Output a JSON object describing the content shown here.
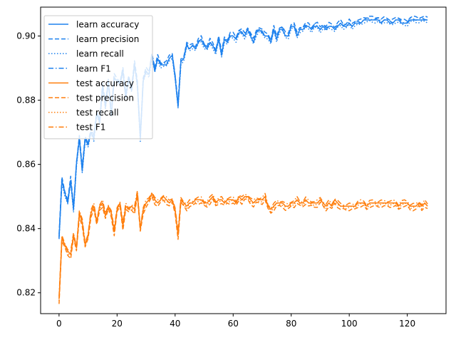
{
  "chart_data": {
    "type": "line",
    "title": "",
    "xlabel": "",
    "ylabel": "",
    "xlim": [
      -6.35,
      133.35
    ],
    "ylim": [
      0.8135,
      0.909
    ],
    "xticks": [
      0,
      20,
      40,
      60,
      80,
      100,
      120
    ],
    "yticks": [
      0.82,
      0.84,
      0.86,
      0.88,
      0.9
    ],
    "ytick_labels": [
      "0.82",
      "0.84",
      "0.86",
      "0.88",
      "0.90"
    ],
    "grid": false,
    "legend_position": "upper left",
    "colors": {
      "learn": "#1f82ee",
      "test": "#ff7f0e"
    },
    "series": [
      {
        "name": "learn accuracy",
        "group": "learn",
        "style": "solid"
      },
      {
        "name": "learn precision",
        "group": "learn",
        "style": "dashed"
      },
      {
        "name": "learn recall",
        "group": "learn",
        "style": "dotted"
      },
      {
        "name": "learn F1",
        "group": "learn",
        "style": "dashdot"
      },
      {
        "name": "test accuracy",
        "group": "test",
        "style": "solid"
      },
      {
        "name": "test precision",
        "group": "test",
        "style": "dashed"
      },
      {
        "name": "test recall",
        "group": "test",
        "style": "dotted"
      },
      {
        "name": "test F1",
        "group": "test",
        "style": "dashdot"
      }
    ],
    "series_values": {
      "x": [
        0,
        1,
        2,
        3,
        4,
        5,
        6,
        7,
        8,
        9,
        10,
        11,
        12,
        13,
        14,
        15,
        16,
        17,
        18,
        19,
        20,
        21,
        22,
        23,
        24,
        25,
        26,
        27,
        28,
        29,
        30,
        31,
        32,
        33,
        34,
        35,
        36,
        37,
        38,
        39,
        40,
        41,
        42,
        43,
        44,
        45,
        46,
        47,
        48,
        49,
        50,
        51,
        52,
        53,
        54,
        55,
        56,
        57,
        58,
        59,
        60,
        61,
        62,
        63,
        64,
        65,
        66,
        67,
        68,
        69,
        70,
        71,
        72,
        73,
        74,
        75,
        76,
        77,
        78,
        79,
        80,
        81,
        82,
        83,
        84,
        85,
        86,
        87,
        88,
        89,
        90,
        91,
        92,
        93,
        94,
        95,
        96,
        97,
        98,
        99,
        100,
        101,
        102,
        103,
        104,
        105,
        106,
        107,
        108,
        109,
        110,
        111,
        112,
        113,
        114,
        115,
        116,
        117,
        118,
        119,
        120,
        121,
        122,
        123,
        124,
        125,
        126,
        127
      ],
      "learn": [
        0.837,
        0.855,
        0.851,
        0.848,
        0.855,
        0.846,
        0.86,
        0.868,
        0.858,
        0.868,
        0.866,
        0.87,
        0.868,
        0.876,
        0.873,
        0.884,
        0.878,
        0.886,
        0.875,
        0.887,
        0.886,
        0.885,
        0.889,
        0.881,
        0.887,
        0.883,
        0.891,
        0.885,
        0.868,
        0.886,
        0.889,
        0.888,
        0.894,
        0.889,
        0.893,
        0.891,
        0.891,
        0.891,
        0.893,
        0.894,
        0.887,
        0.878,
        0.892,
        0.893,
        0.897,
        0.896,
        0.897,
        0.896,
        0.898,
        0.899,
        0.897,
        0.896,
        0.898,
        0.897,
        0.895,
        0.899,
        0.894,
        0.899,
        0.898,
        0.9,
        0.9,
        0.899,
        0.901,
        0.901,
        0.9,
        0.902,
        0.9,
        0.898,
        0.901,
        0.902,
        0.901,
        0.9,
        0.9,
        0.898,
        0.902,
        0.899,
        0.902,
        0.902,
        0.9,
        0.9,
        0.903,
        0.903,
        0.9,
        0.902,
        0.902,
        0.903,
        0.903,
        0.902,
        0.903,
        0.903,
        0.902,
        0.903,
        0.902,
        0.903,
        0.903,
        0.902,
        0.903,
        0.904,
        0.903,
        0.903,
        0.904,
        0.903,
        0.904,
        0.904,
        0.904,
        0.905,
        0.905,
        0.905,
        0.905,
        0.905,
        0.905,
        0.904,
        0.905,
        0.905,
        0.904,
        0.904,
        0.905,
        0.905,
        0.904,
        0.904,
        0.904,
        0.905,
        0.905,
        0.905,
        0.905,
        0.905,
        0.905,
        0.905
      ],
      "test": [
        0.818,
        0.837,
        0.835,
        0.833,
        0.832,
        0.838,
        0.834,
        0.845,
        0.842,
        0.835,
        0.838,
        0.845,
        0.847,
        0.842,
        0.847,
        0.848,
        0.844,
        0.847,
        0.845,
        0.839,
        0.846,
        0.848,
        0.841,
        0.847,
        0.846,
        0.847,
        0.846,
        0.851,
        0.84,
        0.846,
        0.848,
        0.849,
        0.851,
        0.849,
        0.848,
        0.849,
        0.85,
        0.849,
        0.848,
        0.849,
        0.846,
        0.838,
        0.849,
        0.848,
        0.847,
        0.848,
        0.848,
        0.849,
        0.849,
        0.849,
        0.848,
        0.848,
        0.849,
        0.85,
        0.848,
        0.849,
        0.849,
        0.848,
        0.849,
        0.849,
        0.849,
        0.848,
        0.85,
        0.849,
        0.85,
        0.85,
        0.849,
        0.848,
        0.849,
        0.849,
        0.849,
        0.85,
        0.847,
        0.846,
        0.847,
        0.848,
        0.848,
        0.848,
        0.847,
        0.847,
        0.848,
        0.848,
        0.849,
        0.848,
        0.848,
        0.849,
        0.848,
        0.848,
        0.848,
        0.848,
        0.849,
        0.848,
        0.847,
        0.848,
        0.847,
        0.849,
        0.848,
        0.847,
        0.847,
        0.847,
        0.847,
        0.847,
        0.847,
        0.848,
        0.848,
        0.848,
        0.847,
        0.848,
        0.848,
        0.848,
        0.848,
        0.848,
        0.848,
        0.848,
        0.848,
        0.848,
        0.848,
        0.847,
        0.848,
        0.848,
        0.848,
        0.847,
        0.847,
        0.847,
        0.848,
        0.847,
        0.848,
        0.847
      ]
    }
  }
}
